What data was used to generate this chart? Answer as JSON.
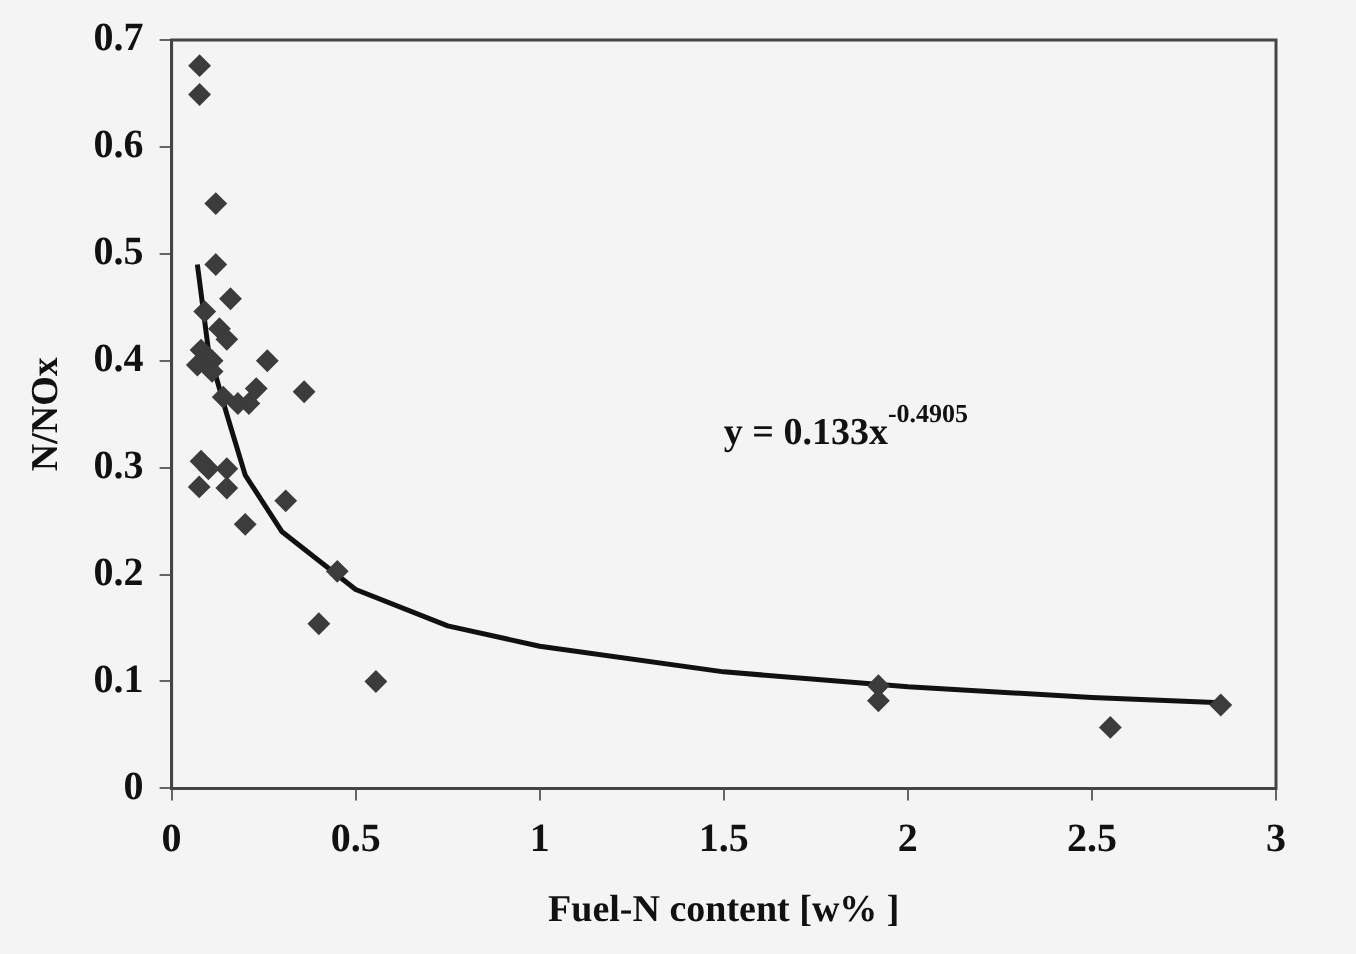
{
  "chart_data": {
    "type": "scatter",
    "xlabel": "Fuel-N content [w% ]",
    "ylabel": "N/NOx",
    "xlim": [
      0,
      3
    ],
    "ylim": [
      0,
      0.7
    ],
    "xticks": [
      0,
      0.5,
      1,
      1.5,
      2,
      2.5,
      3
    ],
    "yticks": [
      0,
      0.1,
      0.2,
      0.3,
      0.4,
      0.5,
      0.6,
      0.7
    ],
    "grid": false,
    "legend": false,
    "annotations": [
      "y = 0.133x$^{-0.4905}$"
    ],
    "series": [
      {
        "marker": "diamond",
        "color": "#3c3c3c",
        "x": [
          0.076,
          0.076,
          0.12,
          0.12,
          0.16,
          0.09,
          0.13,
          0.15,
          0.08,
          0.11,
          0.07,
          0.11,
          0.26,
          0.14,
          0.18,
          0.21,
          0.23,
          0.36,
          0.08,
          0.1,
          0.15,
          0.075,
          0.15,
          0.2,
          0.31,
          0.45,
          0.4,
          0.555,
          1.92,
          1.92,
          2.55,
          2.85
        ],
        "values": [
          0.676,
          0.649,
          0.547,
          0.49,
          0.458,
          0.446,
          0.43,
          0.42,
          0.41,
          0.4,
          0.396,
          0.39,
          0.4,
          0.366,
          0.36,
          0.36,
          0.374,
          0.371,
          0.306,
          0.299,
          0.299,
          0.282,
          0.281,
          0.247,
          0.269,
          0.203,
          0.154,
          0.1,
          0.096,
          0.082,
          0.057,
          0.078
        ]
      },
      {
        "type": "line",
        "marker": "none",
        "color": "#111111",
        "x": [
          0.07,
          0.1,
          0.15,
          0.2,
          0.3,
          0.5,
          0.75,
          1,
          1.5,
          2,
          2.5,
          2.85
        ],
        "values": [
          0.49,
          0.41,
          0.35,
          0.293,
          0.24,
          0.186,
          0.152,
          0.133,
          0.109,
          0.095,
          0.085,
          0.08
        ]
      }
    ]
  }
}
